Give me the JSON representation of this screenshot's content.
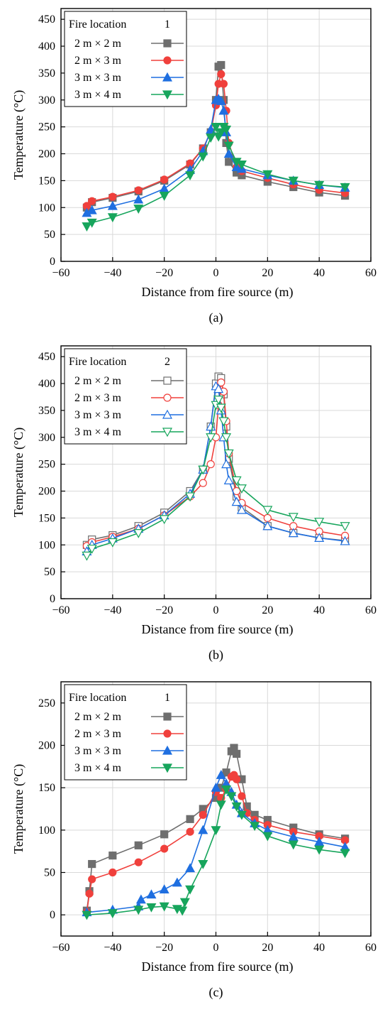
{
  "chart_data": [
    {
      "type": "line",
      "caption": "(a)",
      "legend_title": "Fire location",
      "legend_index": "1",
      "legend_placement": "top-left",
      "marker_fill": "filled",
      "xlabel": "Distance from fire source (m)",
      "ylabel": "Temperature (°C)",
      "xlim": [
        -60,
        60
      ],
      "ylim": [
        0,
        470
      ],
      "xticks": [
        "−60",
        "−40",
        "−20",
        "0",
        "20",
        "40",
        "60"
      ],
      "yticks": [
        "0",
        "50",
        "100",
        "150",
        "200",
        "250",
        "300",
        "350",
        "400",
        "450"
      ],
      "grid": true,
      "series": [
        {
          "name": "2 m × 2 m",
          "color": "#6e6e6e",
          "marker": "square",
          "x": [
            -50,
            -48,
            -40,
            -30,
            -20,
            -10,
            -5,
            -2,
            0,
            1,
            2,
            3,
            4,
            5,
            8,
            10,
            20,
            30,
            40,
            50
          ],
          "y": [
            100,
            110,
            118,
            130,
            150,
            180,
            210,
            240,
            300,
            362,
            365,
            300,
            220,
            185,
            165,
            160,
            148,
            138,
            128,
            122
          ]
        },
        {
          "name": "2 m × 3 m",
          "color": "#f0403c",
          "marker": "circle",
          "x": [
            -50,
            -48,
            -40,
            -30,
            -20,
            -10,
            -5,
            -2,
            0,
            1,
            2,
            3,
            4,
            5,
            8,
            10,
            20,
            30,
            40,
            50
          ],
          "y": [
            103,
            112,
            120,
            132,
            152,
            182,
            210,
            240,
            290,
            330,
            348,
            330,
            280,
            220,
            175,
            168,
            155,
            143,
            133,
            127
          ]
        },
        {
          "name": "3 m × 3 m",
          "color": "#1f6fe0",
          "marker": "triangle-up",
          "x": [
            -50,
            -48,
            -40,
            -30,
            -20,
            -10,
            -5,
            -2,
            0,
            1,
            2,
            3,
            4,
            5,
            8,
            10,
            20,
            30,
            40,
            50
          ],
          "y": [
            90,
            95,
            103,
            115,
            135,
            170,
            205,
            245,
            300,
            302,
            298,
            280,
            240,
            200,
            175,
            172,
            160,
            150,
            142,
            137
          ]
        },
        {
          "name": "3 m × 4 m",
          "color": "#17a55c",
          "marker": "triangle-down",
          "x": [
            -50,
            -48,
            -40,
            -30,
            -20,
            -10,
            -5,
            -2,
            0,
            1,
            2,
            3,
            4,
            5,
            8,
            10,
            20,
            30,
            40,
            50
          ],
          "y": [
            65,
            72,
            82,
            98,
            122,
            160,
            195,
            230,
            250,
            232,
            240,
            250,
            245,
            215,
            185,
            180,
            162,
            150,
            142,
            138
          ]
        }
      ]
    },
    {
      "type": "line",
      "caption": "(b)",
      "legend_title": "Fire location",
      "legend_index": "2",
      "legend_placement": "top-left",
      "marker_fill": "hollow",
      "xlabel": "Distance from fire source (m)",
      "ylabel": "Temperature (°C)",
      "xlim": [
        -60,
        60
      ],
      "ylim": [
        0,
        470
      ],
      "xticks": [
        "−60",
        "−40",
        "−20",
        "0",
        "20",
        "40",
        "60"
      ],
      "yticks": [
        "0",
        "50",
        "100",
        "150",
        "200",
        "250",
        "300",
        "350",
        "400",
        "450"
      ],
      "grid": true,
      "series": [
        {
          "name": "2 m × 2 m",
          "color": "#6e6e6e",
          "marker": "square",
          "x": [
            -50,
            -48,
            -40,
            -30,
            -20,
            -10,
            -5,
            -2,
            0,
            1,
            2,
            3,
            4,
            5,
            8,
            10,
            20,
            30,
            40,
            50
          ],
          "y": [
            100,
            110,
            118,
            135,
            160,
            200,
            240,
            320,
            400,
            413,
            410,
            380,
            320,
            260,
            190,
            170,
            135,
            122,
            113,
            108
          ]
        },
        {
          "name": "2 m × 3 m",
          "color": "#f0403c",
          "marker": "circle",
          "x": [
            -50,
            -48,
            -40,
            -30,
            -20,
            -10,
            -5,
            -2,
            0,
            1,
            2,
            3,
            4,
            5,
            8,
            10,
            20,
            30,
            40,
            50
          ],
          "y": [
            98,
            105,
            115,
            130,
            155,
            190,
            215,
            250,
            300,
            360,
            402,
            385,
            330,
            270,
            200,
            178,
            150,
            135,
            125,
            117
          ]
        },
        {
          "name": "3 m × 3 m",
          "color": "#1f6fe0",
          "marker": "triangle-up",
          "x": [
            -50,
            -48,
            -40,
            -30,
            -20,
            -10,
            -5,
            -2,
            0,
            1,
            2,
            3,
            4,
            5,
            8,
            10,
            20,
            30,
            40,
            50
          ],
          "y": [
            88,
            100,
            112,
            130,
            155,
            195,
            240,
            320,
            395,
            390,
            350,
            300,
            250,
            220,
            180,
            165,
            135,
            122,
            113,
            107
          ]
        },
        {
          "name": "3 m × 4 m",
          "color": "#17a55c",
          "marker": "triangle-down",
          "x": [
            -50,
            -48,
            -40,
            -30,
            -20,
            -10,
            -5,
            -2,
            0,
            1,
            2,
            3,
            4,
            5,
            8,
            10,
            20,
            30,
            40,
            50
          ],
          "y": [
            80,
            93,
            105,
            122,
            148,
            190,
            240,
            300,
            360,
            370,
            355,
            330,
            300,
            270,
            220,
            205,
            165,
            152,
            143,
            135
          ]
        }
      ]
    },
    {
      "type": "line",
      "caption": "(c)",
      "legend_title": "Fire location",
      "legend_index": "1",
      "legend_placement": "top-left",
      "marker_fill": "filled",
      "xlabel": "Distance from fire source (m)",
      "ylabel": "Temperature (°C)",
      "xlim": [
        -60,
        60
      ],
      "ylim": [
        -25,
        275
      ],
      "xticks": [
        "−60",
        "−40",
        "−20",
        "0",
        "20",
        "40",
        "60"
      ],
      "yticks": [
        "0",
        "50",
        "100",
        "150",
        "200",
        "250"
      ],
      "grid": true,
      "series": [
        {
          "name": "2 m × 2 m",
          "color": "#6e6e6e",
          "marker": "square",
          "x": [
            -50,
            -49,
            -48,
            -40,
            -30,
            -20,
            -10,
            -5,
            0,
            2,
            4,
            6,
            7,
            8,
            10,
            12,
            15,
            20,
            30,
            40,
            50
          ],
          "y": [
            5,
            28,
            60,
            70,
            82,
            95,
            113,
            125,
            138,
            150,
            168,
            193,
            197,
            190,
            160,
            128,
            118,
            112,
            103,
            95,
            90
          ]
        },
        {
          "name": "2 m × 3 m",
          "color": "#f0403c",
          "marker": "circle",
          "x": [
            -50,
            -49,
            -48,
            -40,
            -30,
            -20,
            -10,
            -5,
            0,
            2,
            4,
            6,
            7,
            8,
            10,
            12,
            15,
            20,
            30,
            40,
            50
          ],
          "y": [
            3,
            25,
            42,
            50,
            62,
            78,
            98,
            118,
            145,
            138,
            148,
            163,
            165,
            160,
            140,
            120,
            112,
            106,
            98,
            93,
            88
          ]
        },
        {
          "name": "3 m × 3 m",
          "color": "#1f6fe0",
          "marker": "triangle-up",
          "x": [
            -50,
            -40,
            -30,
            -29,
            -25,
            -20,
            -15,
            -10,
            -5,
            0,
            2,
            4,
            6,
            8,
            10,
            15,
            20,
            30,
            40,
            50
          ],
          "y": [
            3,
            6,
            10,
            18,
            24,
            30,
            38,
            55,
            100,
            150,
            165,
            155,
            145,
            130,
            120,
            108,
            100,
            92,
            86,
            80
          ]
        },
        {
          "name": "3 m × 4 m",
          "color": "#17a55c",
          "marker": "triangle-down",
          "x": [
            -50,
            -40,
            -30,
            -25,
            -20,
            -15,
            -13,
            -12,
            -10,
            -5,
            0,
            2,
            4,
            6,
            8,
            10,
            15,
            20,
            30,
            40,
            50
          ],
          "y": [
            0,
            2,
            6,
            9,
            10,
            7,
            5,
            15,
            30,
            60,
            100,
            130,
            148,
            140,
            128,
            118,
            105,
            93,
            83,
            77,
            73
          ]
        }
      ]
    }
  ]
}
